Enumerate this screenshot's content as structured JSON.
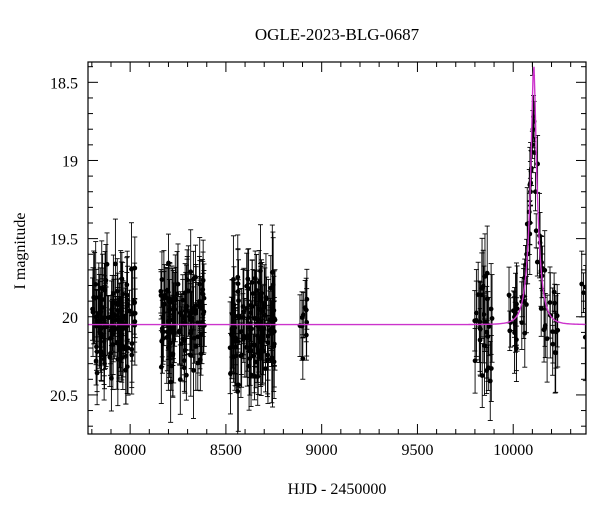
{
  "chart_data": {
    "type": "scatter",
    "title": "OGLE-2023-BLG-0687",
    "xlabel": "HJD - 2450000",
    "ylabel": "I magnitude",
    "xlim": [
      7780,
      10380
    ],
    "ylim": [
      20.75,
      18.37
    ],
    "y_inverted": true,
    "grid": false,
    "x_ticks": [
      8000,
      8500,
      9000,
      9500,
      10000
    ],
    "x_tick_labels": [
      "8000",
      "8500",
      "9000",
      "9500",
      "10000"
    ],
    "y_ticks": [
      18.5,
      19,
      19.5,
      20,
      20.5
    ],
    "y_tick_labels": [
      "18.5",
      "19",
      "19.5",
      "20",
      "20.5"
    ],
    "point_color": "#000000",
    "model_color": "#cc33cc",
    "series": [
      {
        "kind": "observations",
        "seasons": [
          {
            "x_range": [
              7800,
              8030
            ],
            "mag_mean": 20.05,
            "mag_scatter": 0.16,
            "err_mean": 0.22,
            "n": 110
          },
          {
            "x_range": [
              8160,
              8390
            ],
            "mag_mean": 20.02,
            "mag_scatter": 0.15,
            "err_mean": 0.22,
            "n": 110
          },
          {
            "x_range": [
              8520,
              8760
            ],
            "mag_mean": 20.05,
            "mag_scatter": 0.16,
            "err_mean": 0.23,
            "n": 120
          },
          {
            "x_range": [
              8880,
              8930
            ],
            "mag_mean": 20.05,
            "mag_scatter": 0.12,
            "err_mean": 0.18,
            "n": 10
          },
          {
            "x_range": [
              9790,
              9890
            ],
            "mag_mean": 20.05,
            "mag_scatter": 0.2,
            "err_mean": 0.24,
            "n": 28
          },
          {
            "x_range": [
              9970,
              10240
            ],
            "mag_mean": 20.0,
            "mag_scatter": 0.15,
            "err_mean": 0.2,
            "n": 55
          },
          {
            "x_range": [
              10350,
              10380
            ],
            "mag_mean": 20.0,
            "mag_scatter": 0.25,
            "err_mean": 0.2,
            "n": 4
          }
        ],
        "peak_points": [
          {
            "x": 10085,
            "y": 19.4
          },
          {
            "x": 10090,
            "y": 19.2
          },
          {
            "x": 10095,
            "y": 19.05
          },
          {
            "x": 10100,
            "y": 18.9
          },
          {
            "x": 10103,
            "y": 18.8
          },
          {
            "x": 10106,
            "y": 18.72
          },
          {
            "x": 10109,
            "y": 18.75
          },
          {
            "x": 10112,
            "y": 18.95
          },
          {
            "x": 10116,
            "y": 19.2
          },
          {
            "x": 10120,
            "y": 19.45
          },
          {
            "x": 10126,
            "y": 19.65
          },
          {
            "x": 10070,
            "y": 19.6
          },
          {
            "x": 10060,
            "y": 19.75
          }
        ],
        "errors_peak": 0.12
      },
      {
        "kind": "model",
        "baseline": 20.05,
        "t0": 10107,
        "tE": 42,
        "u0": 0.22,
        "blend_ratio": 0.0
      }
    ]
  }
}
